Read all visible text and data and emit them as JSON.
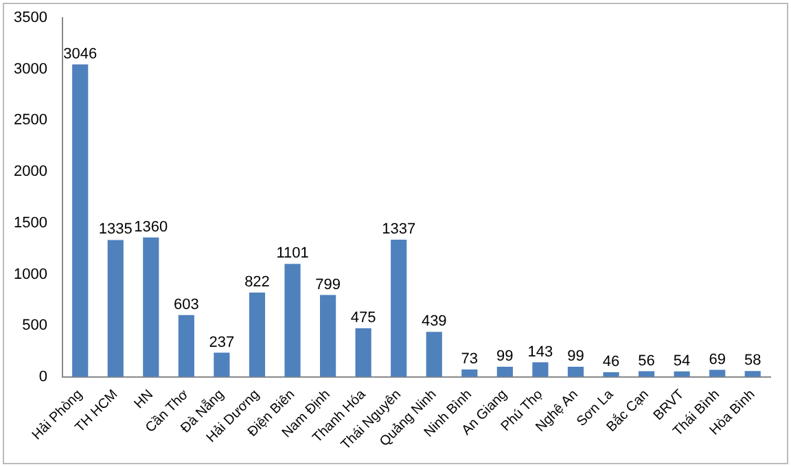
{
  "chart_data": {
    "type": "bar",
    "categories": [
      "Hải Phòng",
      "TH HCM",
      "HN",
      "Cần Thơ",
      "Đà Nẵng",
      "Hải Dương",
      "Điện Biên",
      "Nam Định",
      "Thanh Hóa",
      "Thái Nguyên",
      "Quảng Ninh",
      "Ninh Bình",
      "An Giang",
      "Phú Thọ",
      "Nghệ An",
      "Sơn La",
      "Bắc Cạn",
      "BRVT",
      "Thái Bình",
      "Hòa Bình"
    ],
    "values": [
      3046,
      1335,
      1360,
      603,
      237,
      822,
      1101,
      799,
      475,
      1337,
      439,
      73,
      99,
      143,
      99,
      46,
      56,
      54,
      69,
      58
    ],
    "color": "#4f81bd",
    "ylim": [
      0,
      3500
    ],
    "yticks": [
      0,
      500,
      1000,
      1500,
      2000,
      2500,
      3000,
      3500
    ],
    "grid": false,
    "legend": false,
    "data_labels": true
  }
}
